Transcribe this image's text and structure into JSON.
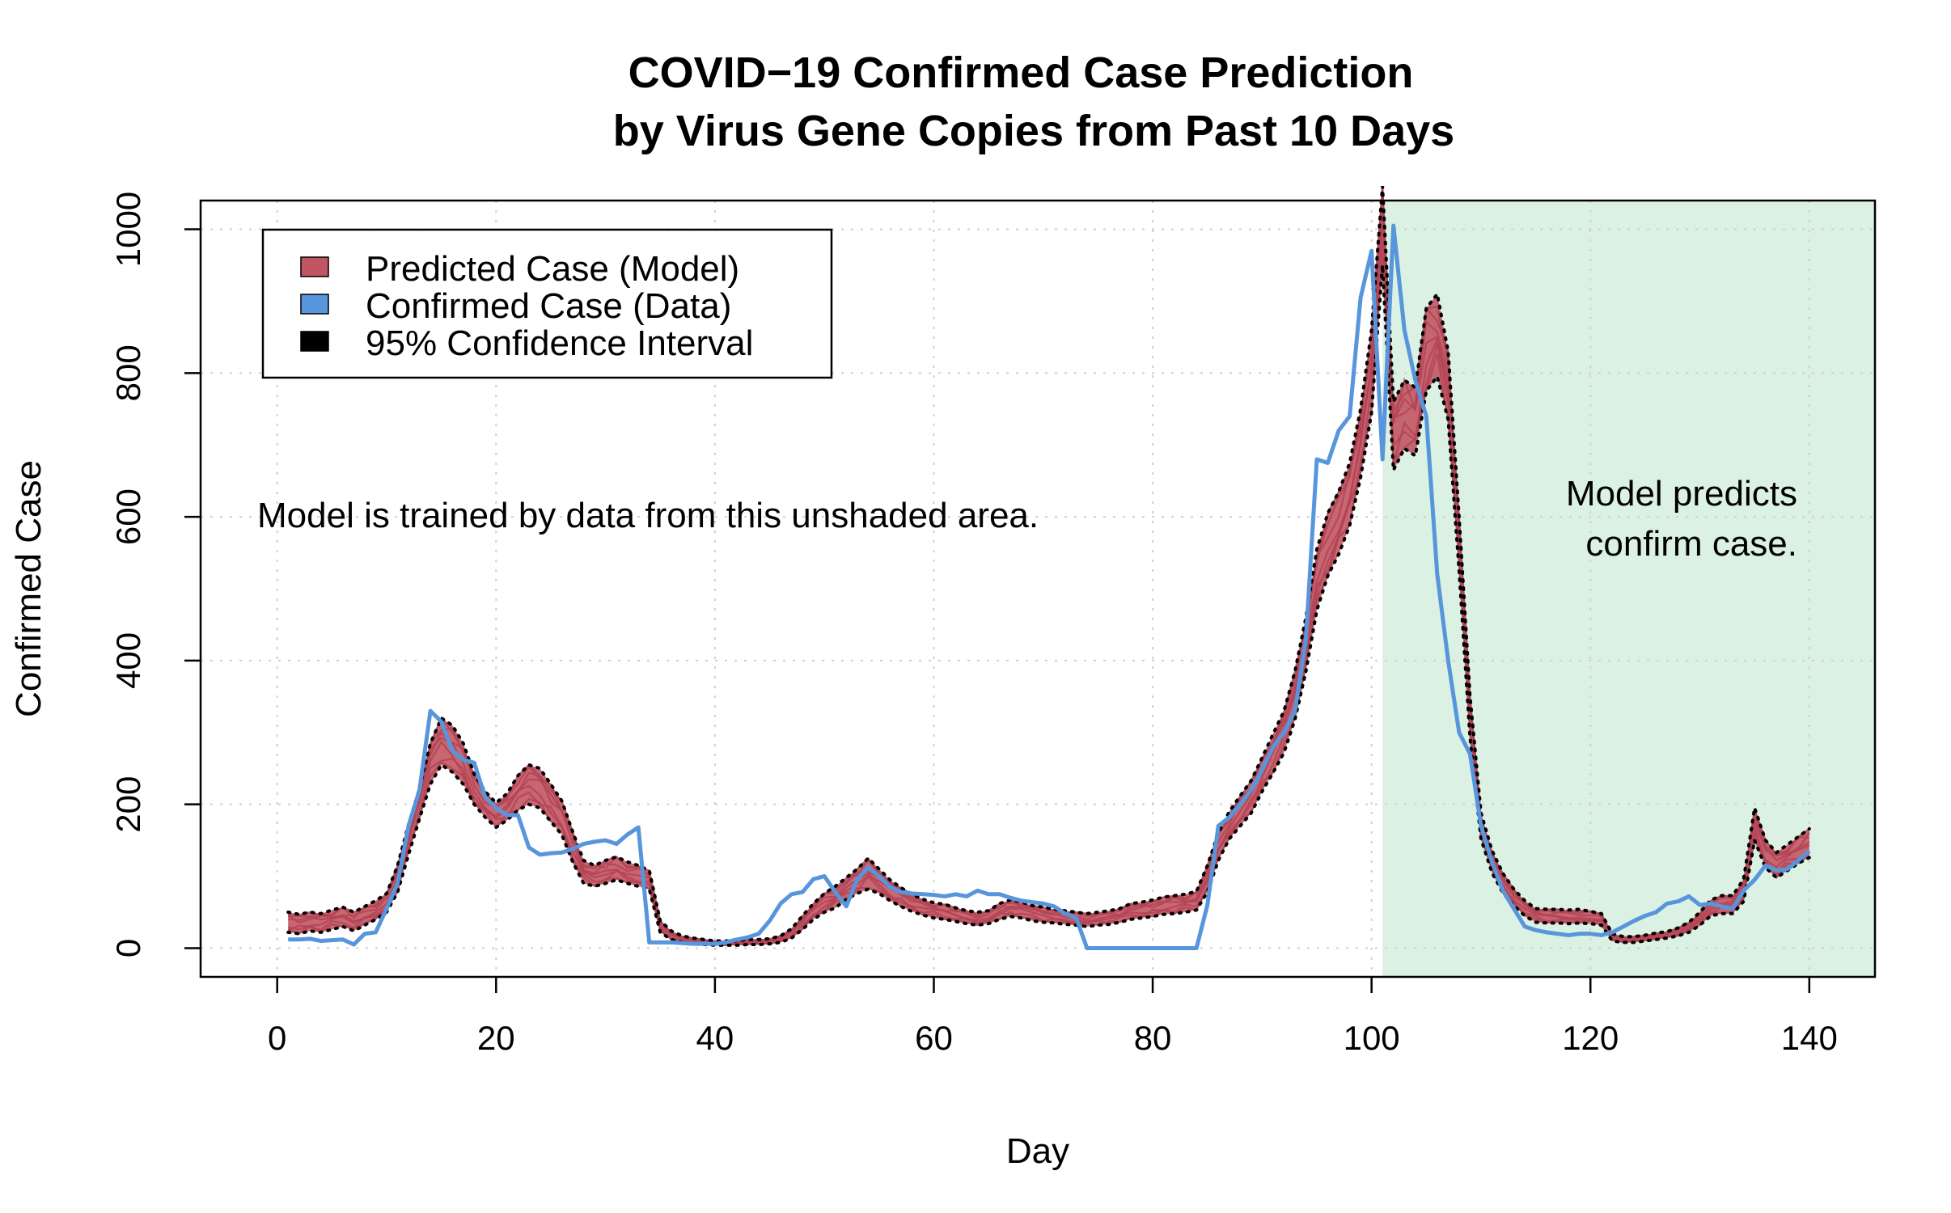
{
  "chart_data": {
    "type": "line",
    "title": "COVID−19 Confirmed Case Prediction",
    "subtitle": "by Virus Gene Copies from Past 10 Days",
    "xlabel": "Day",
    "ylabel": "Confirmed Case",
    "xlim": [
      -7,
      146
    ],
    "ylim": [
      -40,
      1040
    ],
    "x_ticks": [
      0,
      20,
      40,
      60,
      80,
      100,
      120,
      140
    ],
    "y_ticks": [
      0,
      200,
      400,
      600,
      800,
      1000
    ],
    "grid": true,
    "legend_position": "top-left",
    "shaded_region": {
      "x_start": 101,
      "x_end": 146,
      "color": "#dbf1e4"
    },
    "colors": {
      "predicted": "#c25563",
      "confirmed": "#5795dc",
      "confidence": "#000000",
      "grid": "#cfcfcf"
    },
    "series": [
      {
        "name": "Predicted Case (Model)",
        "kind": "band",
        "x": [
          1,
          2,
          3,
          4,
          5,
          6,
          7,
          8,
          9,
          10,
          11,
          12,
          13,
          14,
          15,
          16,
          17,
          18,
          19,
          20,
          21,
          22,
          23,
          24,
          25,
          26,
          27,
          28,
          29,
          30,
          31,
          32,
          33,
          34,
          35,
          36,
          37,
          38,
          39,
          40,
          41,
          42,
          43,
          44,
          45,
          46,
          47,
          48,
          49,
          50,
          51,
          52,
          53,
          54,
          55,
          56,
          57,
          58,
          59,
          60,
          61,
          62,
          63,
          64,
          65,
          66,
          67,
          68,
          69,
          70,
          71,
          72,
          73,
          74,
          75,
          76,
          77,
          78,
          79,
          80,
          81,
          82,
          83,
          84,
          85,
          86,
          87,
          88,
          89,
          90,
          91,
          92,
          93,
          94,
          95,
          96,
          97,
          98,
          99,
          100,
          101,
          102,
          103,
          104,
          105,
          106,
          107,
          108,
          109,
          110,
          111,
          112,
          113,
          114,
          115,
          116,
          117,
          118,
          119,
          120,
          121,
          122,
          123,
          124,
          125,
          126,
          127,
          128,
          129,
          130,
          131,
          132,
          133,
          134,
          135,
          136,
          137,
          138,
          139,
          140
        ],
        "mid": [
          35,
          32,
          36,
          34,
          38,
          42,
          36,
          44,
          52,
          62,
          95,
          150,
          200,
          255,
          285,
          275,
          255,
          220,
          200,
          185,
          195,
          215,
          225,
          220,
          200,
          180,
          140,
          105,
          100,
          105,
          110,
          105,
          100,
          95,
          30,
          18,
          12,
          10,
          8,
          7,
          7,
          7,
          8,
          8,
          9,
          12,
          20,
          35,
          50,
          62,
          70,
          82,
          92,
          102,
          92,
          80,
          70,
          62,
          56,
          52,
          50,
          46,
          42,
          40,
          42,
          50,
          55,
          52,
          48,
          46,
          44,
          42,
          40,
          38,
          40,
          42,
          45,
          50,
          52,
          55,
          58,
          60,
          62,
          65,
          95,
          140,
          170,
          190,
          210,
          240,
          270,
          300,
          350,
          420,
          510,
          560,
          590,
          630,
          700,
          800,
          1000,
          710,
          740,
          730,
          830,
          850,
          780,
          560,
          320,
          170,
          120,
          90,
          70,
          55,
          45,
          44,
          44,
          43,
          44,
          42,
          40,
          15,
          12,
          12,
          14,
          16,
          18,
          22,
          28,
          40,
          55,
          60,
          60,
          80,
          170,
          130,
          115,
          125,
          135,
          145
        ],
        "upper": [
          50,
          47,
          50,
          48,
          53,
          57,
          50,
          58,
          66,
          76,
          115,
          172,
          222,
          285,
          320,
          310,
          285,
          242,
          218,
          202,
          215,
          240,
          255,
          250,
          228,
          205,
          162,
          122,
          115,
          122,
          127,
          120,
          115,
          108,
          38,
          24,
          17,
          14,
          12,
          10,
          10,
          10,
          12,
          12,
          13,
          17,
          27,
          45,
          62,
          76,
          86,
          98,
          110,
          125,
          110,
          95,
          84,
          75,
          68,
          63,
          61,
          56,
          52,
          50,
          52,
          62,
          67,
          64,
          59,
          57,
          54,
          52,
          50,
          48,
          50,
          52,
          55,
          62,
          64,
          67,
          71,
          73,
          75,
          79,
          115,
          160,
          190,
          212,
          233,
          265,
          298,
          330,
          385,
          460,
          555,
          605,
          635,
          675,
          750,
          860,
          1060,
          760,
          790,
          780,
          890,
          910,
          830,
          600,
          350,
          188,
          136,
          104,
          82,
          66,
          55,
          54,
          54,
          53,
          54,
          51,
          48,
          20,
          16,
          16,
          18,
          21,
          23,
          28,
          36,
          50,
          67,
          73,
          73,
          96,
          195,
          150,
          133,
          144,
          155,
          166
        ],
        "lower": [
          22,
          20,
          24,
          22,
          26,
          30,
          24,
          32,
          40,
          50,
          78,
          130,
          180,
          228,
          255,
          245,
          228,
          200,
          182,
          168,
          178,
          192,
          200,
          195,
          176,
          158,
          120,
          90,
          86,
          90,
          95,
          90,
          86,
          82,
          22,
          12,
          8,
          6,
          5,
          4,
          4,
          4,
          5,
          5,
          6,
          8,
          14,
          26,
          40,
          50,
          56,
          68,
          76,
          82,
          76,
          66,
          58,
          51,
          46,
          42,
          40,
          37,
          34,
          32,
          34,
          40,
          44,
          42,
          38,
          36,
          35,
          33,
          32,
          30,
          32,
          33,
          36,
          40,
          42,
          44,
          47,
          48,
          50,
          53,
          78,
          122,
          152,
          170,
          188,
          218,
          244,
          272,
          318,
          385,
          470,
          518,
          548,
          588,
          655,
          745,
          950,
          665,
          695,
          685,
          775,
          795,
          735,
          525,
          292,
          152,
          105,
          77,
          59,
          45,
          36,
          35,
          35,
          34,
          35,
          34,
          32,
          10,
          8,
          8,
          10,
          12,
          14,
          17,
          22,
          32,
          45,
          48,
          48,
          65,
          150,
          112,
          98,
          108,
          118,
          126
        ]
      },
      {
        "name": "Confirmed Case (Data)",
        "kind": "line",
        "x": [
          1,
          2,
          3,
          4,
          5,
          6,
          7,
          8,
          9,
          10,
          11,
          12,
          13,
          14,
          15,
          16,
          17,
          18,
          19,
          20,
          21,
          22,
          23,
          24,
          25,
          26,
          27,
          28,
          29,
          30,
          31,
          32,
          33,
          34,
          35,
          36,
          37,
          38,
          39,
          40,
          41,
          42,
          43,
          44,
          45,
          46,
          47,
          48,
          49,
          50,
          51,
          52,
          53,
          54,
          55,
          56,
          57,
          58,
          59,
          60,
          61,
          62,
          63,
          64,
          65,
          66,
          67,
          68,
          69,
          70,
          71,
          72,
          73,
          74,
          75,
          76,
          77,
          78,
          79,
          80,
          81,
          82,
          83,
          84,
          85,
          86,
          87,
          88,
          89,
          90,
          91,
          92,
          93,
          94,
          95,
          96,
          97,
          98,
          99,
          100,
          101,
          102,
          103,
          104,
          105,
          106,
          107,
          108,
          109,
          110,
          111,
          112,
          113,
          114,
          115,
          116,
          117,
          118,
          119,
          120,
          121,
          122,
          123,
          124,
          125,
          126,
          127,
          128,
          129,
          130,
          131,
          132,
          133,
          134,
          135,
          136,
          137,
          138,
          139,
          140
        ],
        "y": [
          12,
          12,
          13,
          10,
          11,
          12,
          5,
          20,
          22,
          55,
          90,
          170,
          220,
          330,
          315,
          275,
          262,
          258,
          210,
          195,
          185,
          185,
          140,
          130,
          132,
          133,
          138,
          145,
          148,
          150,
          145,
          158,
          168,
          8,
          8,
          8,
          7,
          6,
          6,
          6,
          8,
          12,
          15,
          20,
          38,
          62,
          75,
          78,
          96,
          100,
          78,
          58,
          96,
          112,
          100,
          85,
          78,
          76,
          75,
          74,
          72,
          75,
          72,
          80,
          75,
          75,
          70,
          66,
          64,
          62,
          58,
          48,
          42,
          0,
          0,
          0,
          0,
          0,
          0,
          0,
          0,
          0,
          0,
          0,
          60,
          170,
          182,
          200,
          220,
          248,
          280,
          300,
          330,
          430,
          680,
          675,
          720,
          740,
          905,
          970,
          680,
          1005,
          860,
          790,
          740,
          520,
          400,
          300,
          270,
          170,
          120,
          80,
          55,
          30,
          25,
          22,
          20,
          18,
          20,
          20,
          18,
          22,
          30,
          38,
          45,
          50,
          62,
          65,
          72,
          60,
          62,
          58,
          55,
          80,
          95,
          115,
          108,
          110,
          122,
          135
        ]
      },
      {
        "name": "95% Confidence Interval",
        "kind": "dotted-bounds",
        "derived_from": "Predicted Case (Model)"
      }
    ]
  },
  "annotations": {
    "left": "Model is trained by data from this unshaded area.",
    "right_line1": "Model predicts",
    "right_line2": "confirm case."
  }
}
